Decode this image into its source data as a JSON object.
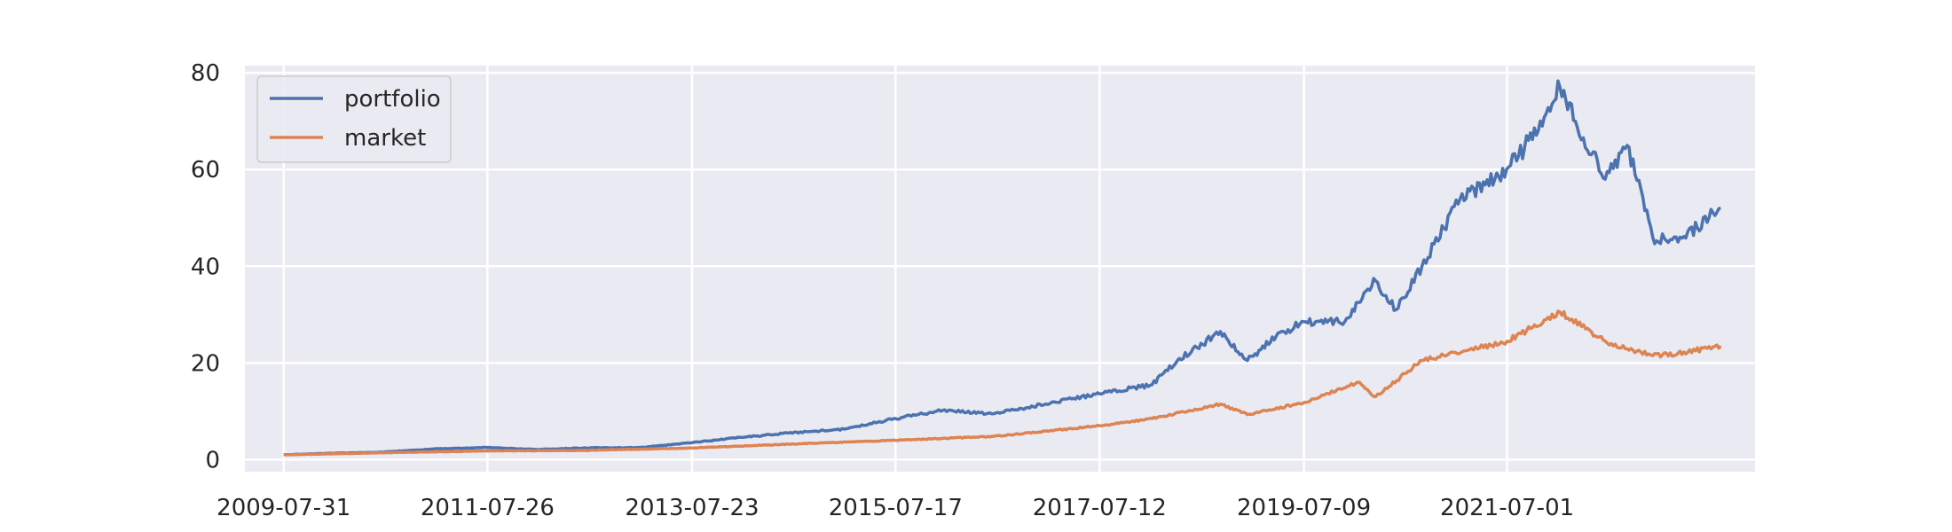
{
  "chart_data": {
    "type": "line",
    "title": "",
    "xlabel": "",
    "ylabel": "",
    "x_tick_labels": [
      "2009-07-31",
      "2011-07-26",
      "2013-07-23",
      "2015-07-17",
      "2017-07-12",
      "2019-07-09",
      "2021-07-01"
    ],
    "y_ticks": [
      0,
      20,
      40,
      60,
      80
    ],
    "xlim": [
      "2009-03-15",
      "2023-11-30"
    ],
    "ylim": [
      -2.5,
      81.5
    ],
    "grid": true,
    "legend_position": "top-left",
    "background_color": "#eaeaf2",
    "grid_color": "#ffffff",
    "series": [
      {
        "name": "portfolio",
        "color": "#4c72b0",
        "points": [
          [
            "2009-07-31",
            1.0
          ],
          [
            "2010-01-15",
            1.3
          ],
          [
            "2010-07-01",
            1.5
          ],
          [
            "2011-01-15",
            2.2
          ],
          [
            "2011-07-26",
            2.5
          ],
          [
            "2012-01-15",
            2.1
          ],
          [
            "2012-07-01",
            2.4
          ],
          [
            "2013-01-15",
            2.5
          ],
          [
            "2013-07-23",
            3.5
          ],
          [
            "2014-01-15",
            4.6
          ],
          [
            "2014-07-01",
            5.5
          ],
          [
            "2015-01-15",
            6.3
          ],
          [
            "2015-07-17",
            8.5
          ],
          [
            "2016-01-01",
            10.2
          ],
          [
            "2016-07-01",
            9.5
          ],
          [
            "2017-01-01",
            11.5
          ],
          [
            "2017-07-12",
            13.6
          ],
          [
            "2018-01-15",
            15.5
          ],
          [
            "2018-04-15",
            20.5
          ],
          [
            "2018-09-15",
            26.5
          ],
          [
            "2018-12-20",
            20.5
          ],
          [
            "2019-04-01",
            25.5
          ],
          [
            "2019-07-09",
            28.5
          ],
          [
            "2019-12-01",
            28.5
          ],
          [
            "2020-03-20",
            37.0
          ],
          [
            "2020-06-01",
            31.0
          ],
          [
            "2020-09-01",
            40.0
          ],
          [
            "2021-01-15",
            54.0
          ],
          [
            "2021-06-01",
            58.5
          ],
          [
            "2021-09-01",
            64.5
          ],
          [
            "2022-01-05",
            77.0
          ],
          [
            "2022-03-01",
            70.0
          ],
          [
            "2022-06-15",
            58.0
          ],
          [
            "2022-09-01",
            65.0
          ],
          [
            "2022-12-01",
            46.0
          ],
          [
            "2023-03-01",
            45.0
          ],
          [
            "2023-07-31",
            52.0
          ]
        ]
      },
      {
        "name": "market",
        "color": "#dd8452",
        "points": [
          [
            "2009-07-31",
            1.0
          ],
          [
            "2010-07-01",
            1.4
          ],
          [
            "2011-07-26",
            1.8
          ],
          [
            "2012-07-01",
            1.9
          ],
          [
            "2013-07-23",
            2.4
          ],
          [
            "2014-07-01",
            3.2
          ],
          [
            "2015-07-17",
            4.0
          ],
          [
            "2016-07-01",
            4.8
          ],
          [
            "2017-07-12",
            7.0
          ],
          [
            "2018-01-15",
            8.5
          ],
          [
            "2018-09-15",
            11.5
          ],
          [
            "2018-12-20",
            9.3
          ],
          [
            "2019-07-09",
            11.8
          ],
          [
            "2020-01-15",
            16.0
          ],
          [
            "2020-03-20",
            13.0
          ],
          [
            "2020-09-01",
            20.5
          ],
          [
            "2021-07-01",
            24.5
          ],
          [
            "2022-01-05",
            30.5
          ],
          [
            "2022-06-15",
            24.5
          ],
          [
            "2022-12-01",
            21.5
          ],
          [
            "2023-03-01",
            22.0
          ],
          [
            "2023-07-31",
            23.5
          ]
        ]
      }
    ]
  }
}
